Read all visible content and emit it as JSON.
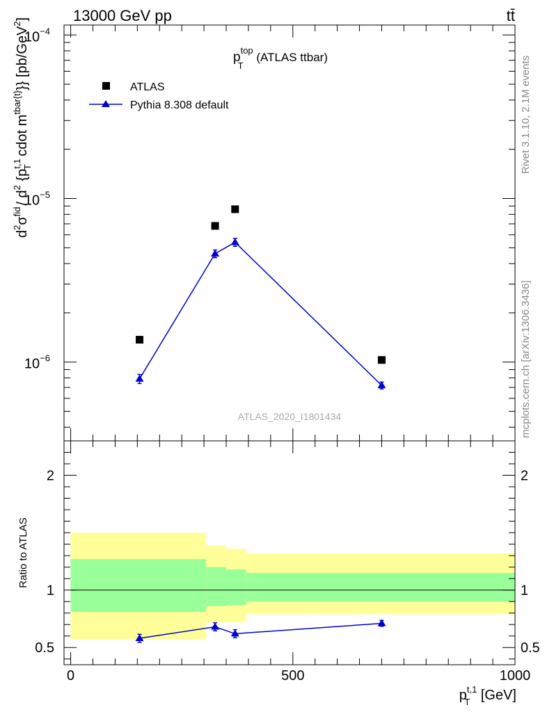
{
  "header": {
    "left": "13000 GeV pp",
    "right": "tt̄"
  },
  "side_labels": {
    "rivet": "Rivet 3.1.10,  2.1M events",
    "mcplots": "mcplots.cern.ch [arXiv:1306.3436]"
  },
  "chart_data": [
    {
      "type": "scatter",
      "title_main": "p",
      "title_sup": "top",
      "title_sub": "T",
      "title_rest": " (ATLAS ttbar)",
      "watermark": "ATLAS_2020_I1801434",
      "ylabel": "d^{2}σ^{fid} / d^{2} {p_{T}^{t,1} cdot m^{tbar{t}}} [pb/GeV^{2}]",
      "yscale": "log",
      "ylim": [
        3.3e-07,
        0.000115
      ],
      "xlim": [
        -15,
        1000
      ],
      "y_ticks": [
        {
          "value": 1e-06,
          "base": "10",
          "exp": "−6"
        },
        {
          "value": 1e-05,
          "base": "10",
          "exp": "−5"
        },
        {
          "value": 0.0001,
          "base": "10",
          "exp": "−4"
        }
      ],
      "legend_position": "top-left",
      "series": [
        {
          "name": "ATLAS",
          "marker": "square",
          "color": "#000000",
          "x": [
            155,
            325,
            370,
            700
          ],
          "y": [
            1.37e-06,
            6.8e-06,
            8.6e-06,
            1.03e-06
          ]
        },
        {
          "name": "Pythia 8.308 default",
          "marker": "triangle",
          "color": "#0000cc",
          "x": [
            155,
            325,
            370,
            700
          ],
          "y": [
            7.9e-07,
            4.6e-06,
            5.4e-06,
            7.2e-07
          ],
          "yerr": [
            5e-08,
            2.5e-07,
            3e-07,
            3.5e-08
          ]
        }
      ]
    },
    {
      "type": "scatter",
      "ylabel": "Ratio to ATLAS",
      "xlabel": "p_T^{t,1} [GeV]",
      "xlabel_main": "p",
      "xlabel_sup": "t,1",
      "xlabel_sub": "T",
      "xlabel_rest": " [GeV]",
      "xlim": [
        -15,
        1000
      ],
      "ylim": [
        0.35,
        2.3
      ],
      "x_ticks": [
        0,
        500,
        1000
      ],
      "x_tick_labels": [
        "0",
        "500",
        "1000"
      ],
      "y_ticks": [
        0.5,
        1,
        2
      ],
      "y_tick_labels": [
        "0.5",
        "1",
        "2"
      ],
      "bands": [
        {
          "x0": 0,
          "x1": 305,
          "yellow": [
            0.57,
            1.5
          ],
          "green": [
            0.81,
            1.27
          ]
        },
        {
          "x0": 305,
          "x1": 350,
          "yellow": [
            0.72,
            1.39
          ],
          "green": [
            0.86,
            1.2
          ]
        },
        {
          "x0": 350,
          "x1": 395,
          "yellow": [
            0.72,
            1.36
          ],
          "green": [
            0.87,
            1.18
          ]
        },
        {
          "x0": 395,
          "x1": 1000,
          "yellow": [
            0.79,
            1.32
          ],
          "green": [
            0.9,
            1.15
          ]
        }
      ],
      "band_colors": {
        "yellow": "#ffff99",
        "green": "#99ff99"
      },
      "series": [
        {
          "name": "Pythia 8.308 default",
          "color": "#0000cc",
          "x": [
            155,
            325,
            370,
            700
          ],
          "y": [
            0.58,
            0.68,
            0.62,
            0.71
          ],
          "yerr": [
            0.035,
            0.035,
            0.035,
            0.025
          ]
        }
      ]
    }
  ]
}
